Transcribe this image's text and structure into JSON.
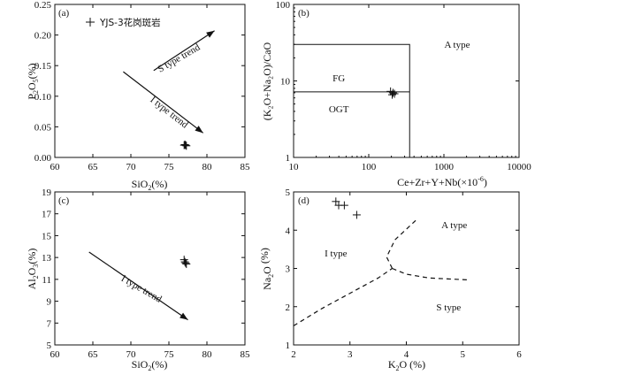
{
  "legend": {
    "label": "YJS-3花岗斑岩",
    "marker": "plus"
  },
  "chart_data": [
    {
      "id": "a",
      "type": "scatter",
      "panel_label": "(a)",
      "xlabel_main": "SiO",
      "xlabel_sub": "2",
      "xlabel_tail": "(%)",
      "ylabel_main": "P",
      "ylabel_sub1": "2",
      "ylabel_mid": "O",
      "ylabel_sub2": "5",
      "ylabel_tail": "(%)",
      "xlim": [
        60,
        85
      ],
      "ylim": [
        0,
        0.25
      ],
      "xticks": [
        60,
        65,
        70,
        75,
        80,
        85
      ],
      "yticks": [
        0.0,
        0.05,
        0.1,
        0.15,
        0.2,
        0.25
      ],
      "ytick_labels": [
        "0.00",
        "0.05",
        "0.10",
        "0.15",
        "0.20",
        "0.25"
      ],
      "points": [
        [
          77.0,
          0.02
        ],
        [
          77.2,
          0.02
        ],
        [
          77.3,
          0.019
        ],
        [
          77.1,
          0.021
        ]
      ],
      "annotations": [
        {
          "text": "S type trend",
          "x1": 73.0,
          "y1": 0.142,
          "x2": 81.0,
          "y2": 0.207,
          "tx": 76.5,
          "ty": 0.158,
          "rot": -30
        },
        {
          "text": "I type trend",
          "x1": 69.0,
          "y1": 0.14,
          "x2": 79.5,
          "y2": 0.04,
          "tx": 74.8,
          "ty": 0.07,
          "rot": 38
        }
      ]
    },
    {
      "id": "b",
      "type": "scatter",
      "panel_label": "(b)",
      "xscale": "log",
      "yscale": "log",
      "xlabel_main": "Ce+Zr+Y+Nb(×10",
      "xlabel_sup": "-6",
      "xlabel_tail": ")",
      "ylabel_text": "(K₂O+Na₂O)/CaO",
      "xlim": [
        10,
        10000
      ],
      "ylim": [
        1,
        100
      ],
      "xticks": [
        10,
        100,
        1000,
        10000
      ],
      "xtick_labels": [
        "10",
        "100",
        "1000",
        "10000"
      ],
      "yticks": [
        1,
        10,
        100
      ],
      "ytick_labels": [
        "1",
        "10",
        "100"
      ],
      "points": [
        [
          195,
          7.3
        ],
        [
          210,
          7.0
        ],
        [
          220,
          6.8
        ],
        [
          205,
          6.6
        ]
      ],
      "boundaries": [
        [
          [
            10,
            30
          ],
          [
            350,
            30
          ],
          [
            350,
            1
          ]
        ],
        [
          [
            10,
            7.2
          ],
          [
            350,
            7.2
          ]
        ]
      ],
      "region_labels": [
        {
          "text": "FG",
          "x": 40,
          "y": 11
        },
        {
          "text": "OGT",
          "x": 40,
          "y": 4.3
        },
        {
          "text": "A type",
          "x": 1500,
          "y": 30
        }
      ]
    },
    {
      "id": "c",
      "type": "scatter",
      "panel_label": "(c)",
      "xlabel_main": "SiO",
      "xlabel_sub": "2",
      "xlabel_tail": "(%)",
      "ylabel_main": "Al",
      "ylabel_sub1": "2",
      "ylabel_mid": "O",
      "ylabel_sub2": "3",
      "ylabel_tail": "(%)",
      "xlim": [
        60,
        85
      ],
      "ylim": [
        5,
        19
      ],
      "xticks": [
        60,
        65,
        70,
        75,
        80,
        85
      ],
      "yticks": [
        5,
        7,
        9,
        11,
        13,
        15,
        17,
        19
      ],
      "ytick_labels": [
        "5",
        "7",
        "9",
        "11",
        "13",
        "15",
        "17",
        "19"
      ],
      "points": [
        [
          77.0,
          12.8
        ],
        [
          77.2,
          12.5
        ],
        [
          77.3,
          12.4
        ],
        [
          77.1,
          12.6
        ]
      ],
      "annotations": [
        {
          "text": "I type trend",
          "x1": 64.5,
          "y1": 13.5,
          "x2": 77.5,
          "y2": 7.3,
          "tx": 71.2,
          "ty": 9.9,
          "rot": 30
        }
      ]
    },
    {
      "id": "d",
      "type": "scatter",
      "panel_label": "(d)",
      "xlabel_main": "K",
      "xlabel_sub": "2",
      "xlabel_tail": "O  (%)",
      "ylabel_main": "Na",
      "ylabel_sub1": "2",
      "ylabel_mid": "O",
      "ylabel_sub2": "",
      "ylabel_tail": " (%)",
      "xlim": [
        2,
        6
      ],
      "ylim": [
        1,
        5
      ],
      "xticks": [
        2,
        3,
        4,
        5,
        6
      ],
      "yticks": [
        1,
        2,
        3,
        4,
        5
      ],
      "ytick_labels": [
        "1",
        "2",
        "3",
        "4",
        "5"
      ],
      "points": [
        [
          2.75,
          4.75
        ],
        [
          2.8,
          4.65
        ],
        [
          2.9,
          4.65
        ],
        [
          3.12,
          4.4
        ]
      ],
      "boundaries": [
        [
          [
            2.0,
            1.5
          ],
          [
            2.5,
            1.95
          ],
          [
            3.0,
            2.35
          ],
          [
            3.5,
            2.75
          ],
          [
            3.75,
            3.0
          ]
        ],
        [
          [
            3.75,
            3.0
          ],
          [
            3.65,
            3.3
          ],
          [
            3.8,
            3.75
          ],
          [
            4.2,
            4.3
          ]
        ],
        [
          [
            3.75,
            3.0
          ],
          [
            4.0,
            2.85
          ],
          [
            4.4,
            2.75
          ],
          [
            5.1,
            2.7
          ]
        ]
      ],
      "region_labels": [
        {
          "text": "I type",
          "x": 2.75,
          "y": 3.4
        },
        {
          "text": "A type",
          "x": 4.85,
          "y": 4.15
        },
        {
          "text": "S type",
          "x": 4.75,
          "y": 2.0
        }
      ]
    }
  ]
}
